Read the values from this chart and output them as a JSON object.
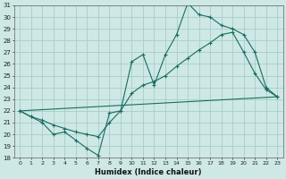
{
  "xlabel": "Humidex (Indice chaleur)",
  "background_color": "#cde8e5",
  "grid_color": "#aaccca",
  "line_color": "#1a6b63",
  "xmin": -0.5,
  "xmax": 23.5,
  "ymin": 18,
  "ymax": 31,
  "yticks": [
    18,
    19,
    20,
    21,
    22,
    23,
    24,
    25,
    26,
    27,
    28,
    29,
    30,
    31
  ],
  "xticks": [
    0,
    1,
    2,
    3,
    4,
    5,
    6,
    7,
    8,
    9,
    10,
    11,
    12,
    13,
    14,
    15,
    16,
    17,
    18,
    19,
    20,
    21,
    22,
    23
  ],
  "line1_x": [
    0,
    1,
    2,
    3,
    4,
    5,
    6,
    7,
    8,
    9,
    10,
    11,
    12,
    13,
    14,
    15,
    16,
    17,
    18,
    19,
    20,
    21,
    22,
    23
  ],
  "line1_y": [
    22.0,
    21.5,
    21.0,
    20.0,
    20.2,
    19.5,
    18.8,
    18.2,
    21.8,
    22.0,
    26.2,
    26.8,
    24.2,
    26.8,
    28.5,
    31.2,
    30.2,
    30.0,
    29.3,
    29.0,
    28.5,
    27.0,
    24.0,
    23.2
  ],
  "line2_x": [
    0,
    1,
    2,
    3,
    4,
    5,
    6,
    7,
    8,
    9,
    10,
    11,
    12,
    13,
    14,
    15,
    16,
    17,
    18,
    19,
    20,
    21,
    22,
    23
  ],
  "line2_y": [
    22.0,
    21.5,
    21.2,
    20.8,
    20.5,
    20.2,
    20.0,
    19.8,
    21.0,
    22.0,
    23.5,
    24.2,
    24.5,
    25.0,
    25.8,
    26.5,
    27.2,
    27.8,
    28.5,
    28.7,
    27.0,
    25.2,
    23.8,
    23.2
  ],
  "line3_x": [
    0,
    23
  ],
  "line3_y": [
    22.0,
    23.2
  ]
}
